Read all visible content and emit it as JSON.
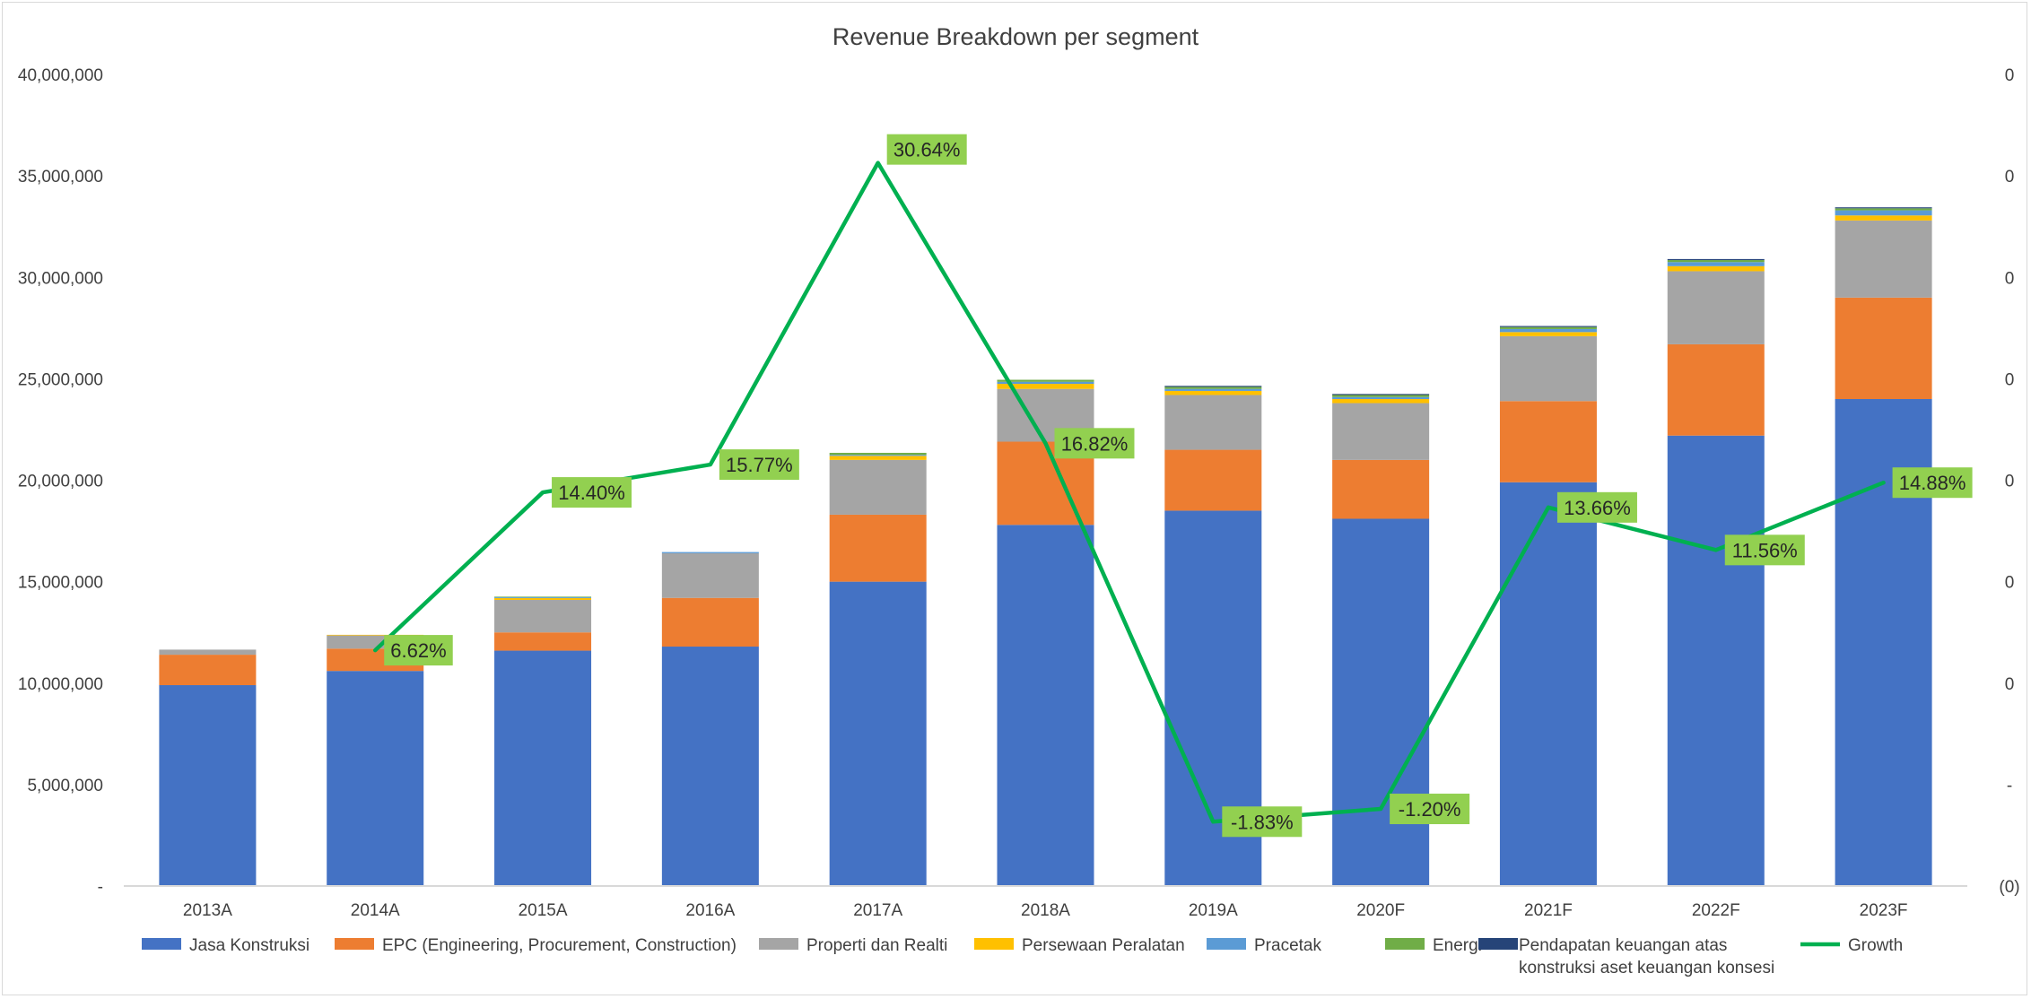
{
  "chart_data": {
    "type": "bar",
    "stacked": true,
    "title": "Revenue Breakdown per segment",
    "categories": [
      "2013A",
      "2014A",
      "2015A",
      "2016A",
      "2017A",
      "2018A",
      "2019A",
      "2020F",
      "2021F",
      "2022F",
      "2023F"
    ],
    "ylim": [
      0,
      40000000
    ],
    "y_ticks": [
      {
        "value": 0,
        "label": "-"
      },
      {
        "value": 5000000,
        "label": "5,000,000"
      },
      {
        "value": 10000000,
        "label": "10,000,000"
      },
      {
        "value": 15000000,
        "label": "15,000,000"
      },
      {
        "value": 20000000,
        "label": "20,000,000"
      },
      {
        "value": 25000000,
        "label": "25,000,000"
      },
      {
        "value": 30000000,
        "label": "30,000,000"
      },
      {
        "value": 35000000,
        "label": "35,000,000"
      },
      {
        "value": 40000000,
        "label": "40,000,000"
      }
    ],
    "y2_ticks": [
      "(0)",
      "-",
      "0",
      "0",
      "0",
      "0",
      "0",
      "0",
      "0"
    ],
    "grid": false,
    "legend_position": "bottom",
    "series": [
      {
        "name": "Jasa Konstruksi",
        "color": "#4472c4",
        "values": [
          9900000,
          10600000,
          11600000,
          11800000,
          15000000,
          17800000,
          18500000,
          18100000,
          19900000,
          22200000,
          24000000
        ]
      },
      {
        "name": "EPC (Engineering, Procurement, Construction)",
        "color": "#ed7d31",
        "values": [
          1500000,
          1100000,
          900000,
          2400000,
          3300000,
          4100000,
          3000000,
          2900000,
          4000000,
          4500000,
          5000000
        ]
      },
      {
        "name": "Properti dan Realti",
        "color": "#a5a5a5",
        "values": [
          250000,
          650000,
          1600000,
          2200000,
          2700000,
          2600000,
          2700000,
          2800000,
          3200000,
          3600000,
          3800000
        ]
      },
      {
        "name": "Persewaan Peralatan",
        "color": "#ffc000",
        "values": [
          0,
          30000,
          90000,
          0,
          200000,
          250000,
          200000,
          200000,
          200000,
          250000,
          250000
        ]
      },
      {
        "name": "Pracetak",
        "color": "#5b9bd5",
        "values": [
          0,
          0,
          40000,
          60000,
          50000,
          100000,
          100000,
          100000,
          150000,
          200000,
          250000
        ]
      },
      {
        "name": "Energi",
        "color": "#70ad47",
        "values": [
          0,
          0,
          30000,
          0,
          100000,
          100000,
          100000,
          100000,
          100000,
          100000,
          100000
        ]
      },
      {
        "name": "Pendapatan keuangan atas konstruksi aset keuangan konsesi",
        "color": "#264478",
        "legend_lines": [
          "Pendapatan keuangan atas",
          "konstruksi aset keuangan konsesi"
        ],
        "values": [
          0,
          0,
          0,
          0,
          0,
          0,
          50000,
          50000,
          50000,
          50000,
          50000
        ]
      }
    ],
    "growth": {
      "name": "Growth",
      "color": "#00b050",
      "label_bg": "#92d050",
      "values": [
        null,
        6.62,
        14.4,
        15.77,
        30.64,
        16.82,
        -1.83,
        -1.2,
        13.66,
        11.56,
        14.88
      ],
      "labels": [
        "",
        "6.62%",
        "14.40%",
        "15.77%",
        "30.64%",
        "16.82%",
        "-1.83%",
        "-1.20%",
        "13.66%",
        "11.56%",
        "14.88%"
      ]
    }
  }
}
